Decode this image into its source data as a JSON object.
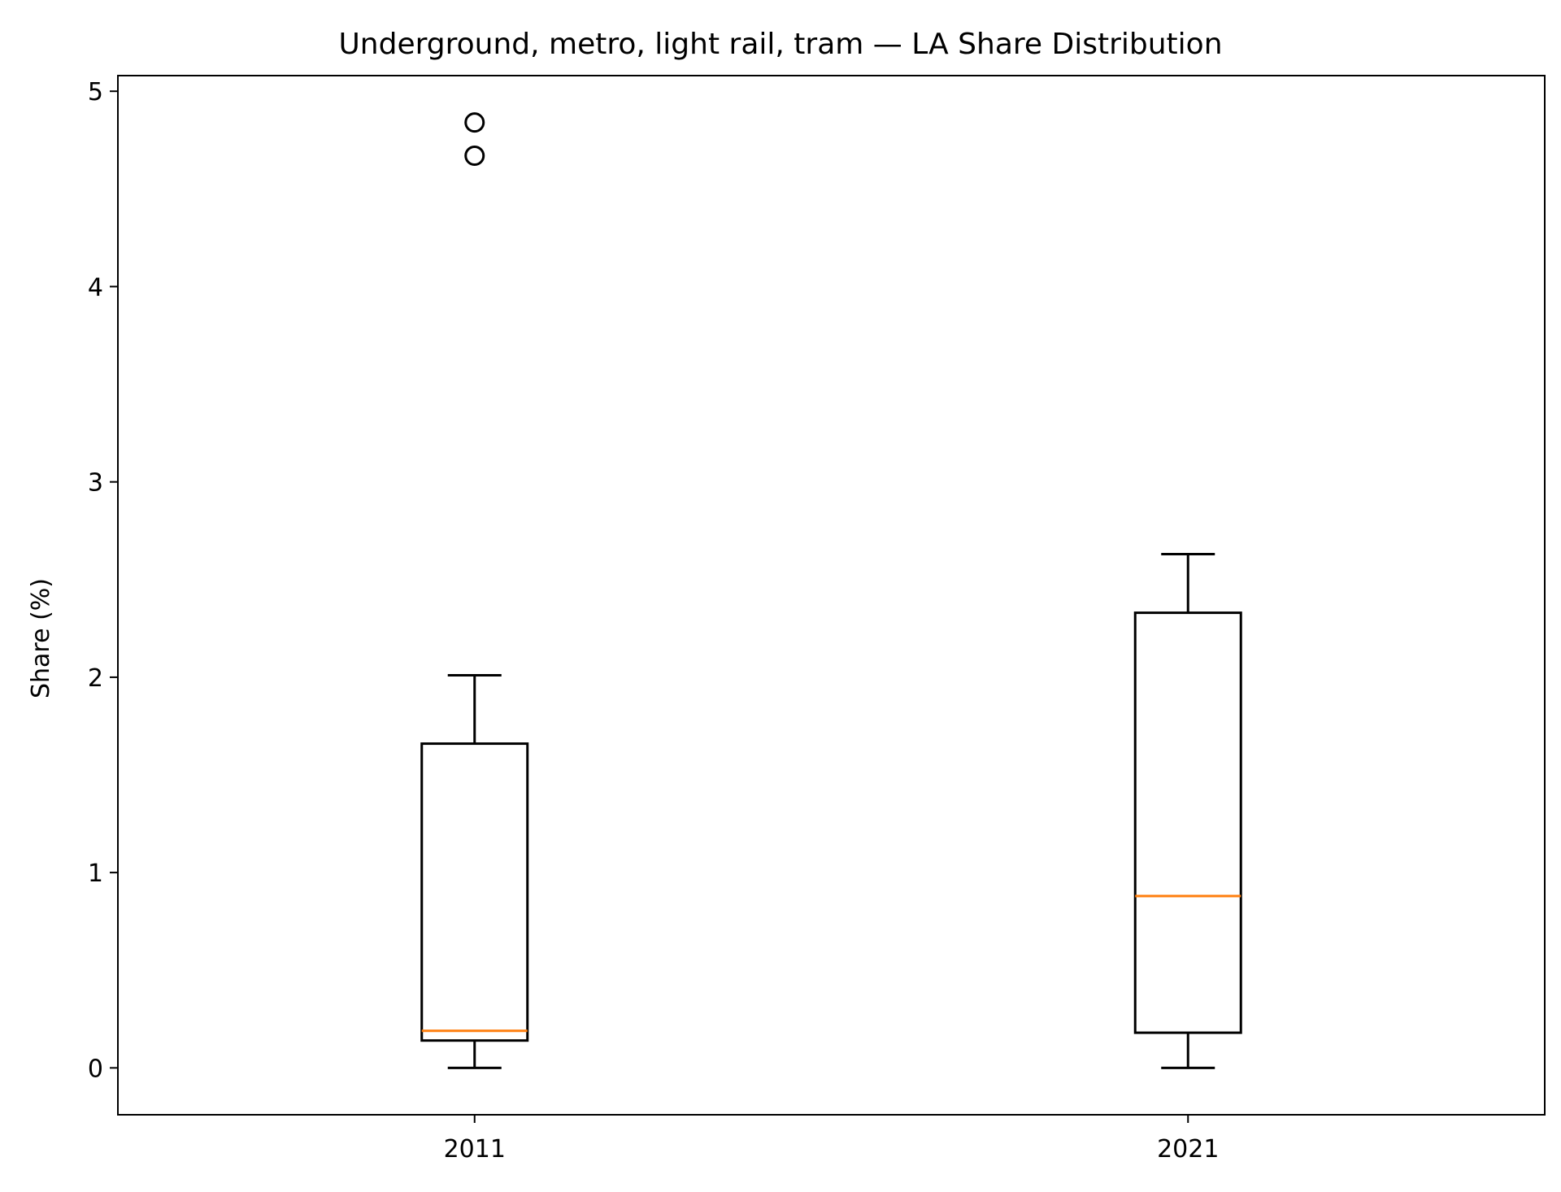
{
  "chart_data": {
    "type": "boxplot",
    "title": "Underground, metro, light rail, tram — LA Share Distribution",
    "xlabel": "",
    "ylabel": "Share (%)",
    "categories": [
      "2011",
      "2021"
    ],
    "ylim": [
      -0.24,
      5.08
    ],
    "yticks": [
      "0",
      "1",
      "2",
      "3",
      "4",
      "5"
    ],
    "grid": false,
    "boxes": [
      {
        "label": "2011",
        "whisker_low": 0.0,
        "q1": 0.14,
        "median": 0.19,
        "q3": 1.66,
        "whisker_high": 2.01,
        "outliers": [
          4.67,
          4.84
        ]
      },
      {
        "label": "2021",
        "whisker_low": 0.0,
        "q1": 0.18,
        "median": 0.88,
        "q3": 2.33,
        "whisker_high": 2.63,
        "outliers": []
      }
    ],
    "colors": {
      "box": "#000000",
      "median": "#ff7f0e",
      "outlier": "#000000"
    }
  }
}
